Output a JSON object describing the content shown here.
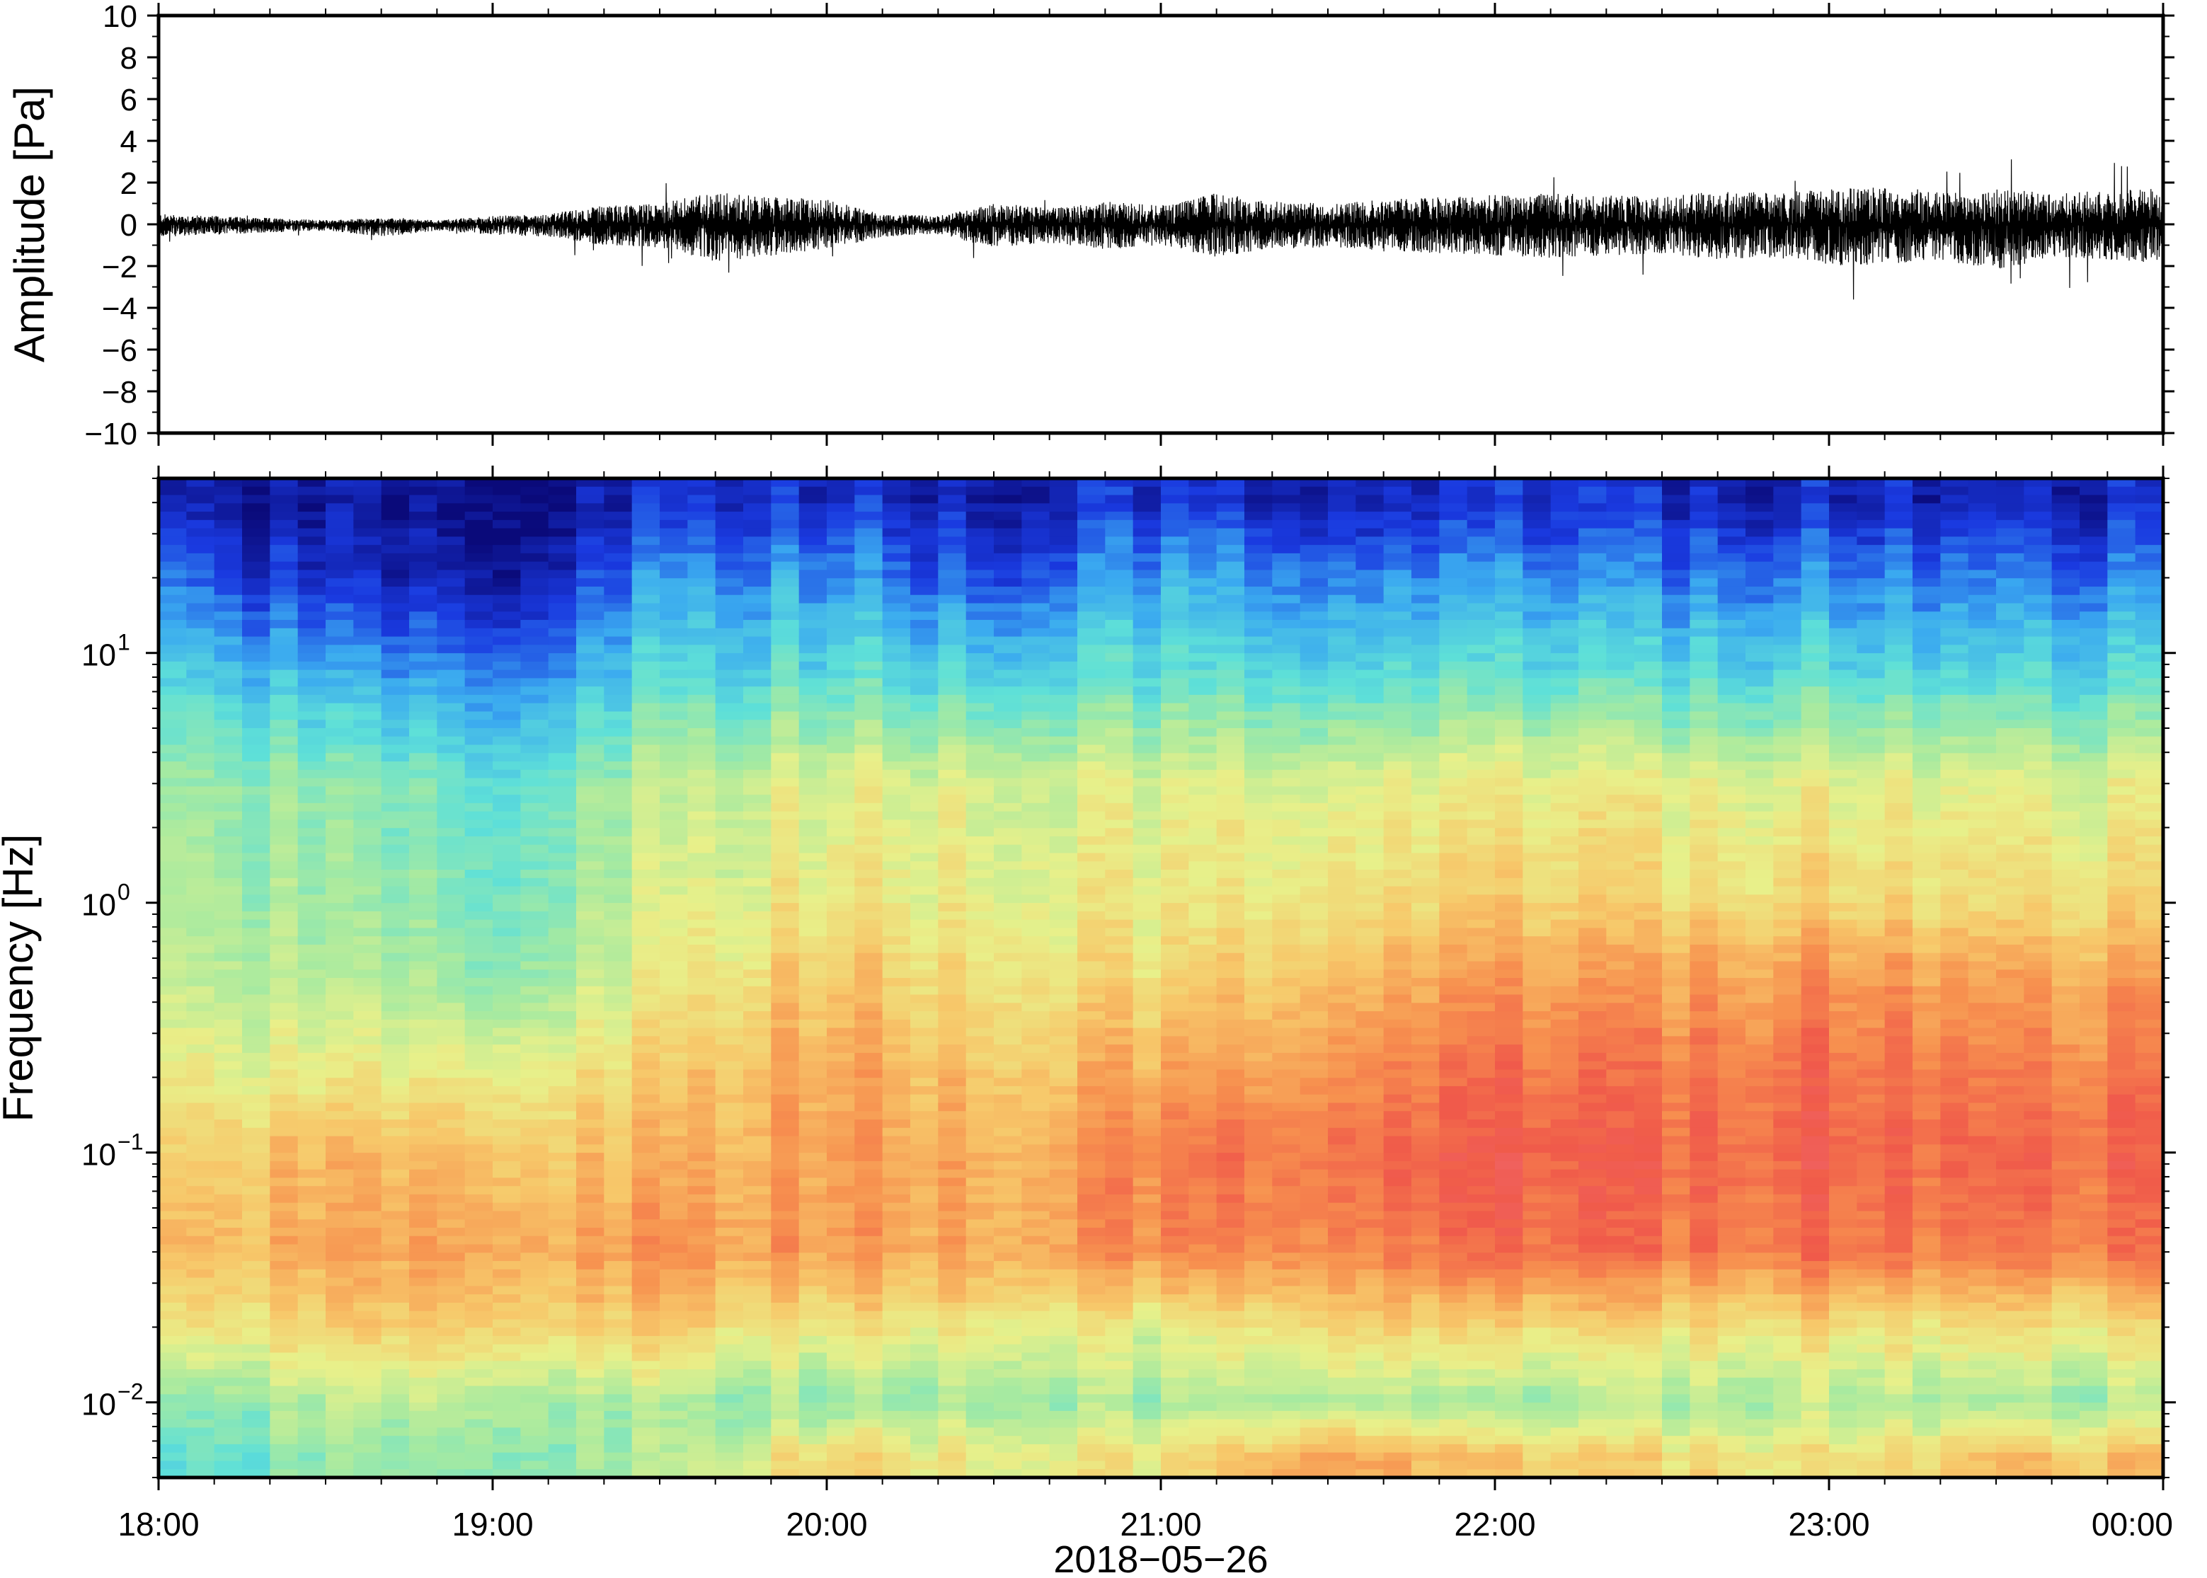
{
  "chart_data": [
    {
      "type": "line",
      "title": "",
      "ylabel": "Amplitude [Pa]",
      "ylim": [
        -10,
        10
      ],
      "yticks": [
        10,
        8,
        6,
        4,
        2,
        0,
        -2,
        -4,
        -6,
        -8,
        -10
      ],
      "ytick_labels": [
        "10",
        "8",
        "6",
        "4",
        "2",
        "0",
        "−2",
        "−4",
        "−6",
        "−8",
        "−10"
      ],
      "xlim": [
        "2018-05-26 18:00",
        "2018-05-27 00:00"
      ],
      "line_color": "#000000",
      "envelope": {
        "description_units": "Pa",
        "time": [
          "18:00",
          "18:10",
          "18:20",
          "18:30",
          "18:40",
          "18:50",
          "19:00",
          "19:10",
          "19:20",
          "19:30",
          "19:40",
          "19:50",
          "20:00",
          "20:10",
          "20:20",
          "20:30",
          "20:40",
          "20:50",
          "21:00",
          "21:10",
          "21:20",
          "21:30",
          "21:40",
          "21:50",
          "22:00",
          "22:10",
          "22:20",
          "22:30",
          "22:40",
          "22:50",
          "23:00",
          "23:10",
          "23:20",
          "23:30",
          "23:40",
          "23:50",
          "00:00"
        ],
        "upper": [
          0.5,
          0.4,
          0.3,
          0.2,
          0.3,
          0.2,
          0.4,
          0.5,
          0.9,
          1.0,
          1.6,
          1.3,
          1.2,
          0.5,
          0.4,
          1.0,
          0.8,
          1.1,
          0.9,
          1.5,
          1.1,
          1.0,
          1.2,
          1.3,
          1.4,
          1.5,
          1.4,
          1.3,
          1.6,
          1.5,
          1.7,
          1.8,
          1.6,
          1.7,
          1.5,
          1.6,
          1.8
        ],
        "lower": [
          -0.6,
          -0.5,
          -0.4,
          -0.3,
          -0.6,
          -0.3,
          -0.5,
          -0.6,
          -1.0,
          -1.1,
          -1.8,
          -1.5,
          -1.2,
          -0.6,
          -0.5,
          -1.1,
          -0.9,
          -1.2,
          -1.0,
          -1.6,
          -1.2,
          -1.1,
          -1.3,
          -1.4,
          -1.5,
          -1.6,
          -1.5,
          -1.4,
          -1.7,
          -1.6,
          -2.0,
          -1.9,
          -1.7,
          -2.2,
          -1.6,
          -1.7,
          -1.9
        ]
      }
    },
    {
      "type": "heatmap",
      "title": "",
      "xlabel": "2018−05−26",
      "ylabel": "Frequency [Hz]",
      "yscale": "log",
      "ylim": [
        0.005,
        50
      ],
      "yticks": [
        0.01,
        0.1,
        1,
        10
      ],
      "ytick_labels": [
        {
          "base": "10",
          "exp": "−2"
        },
        {
          "base": "10",
          "exp": "−1"
        },
        {
          "base": "10",
          "exp": "0"
        },
        {
          "base": "10",
          "exp": "1"
        }
      ],
      "xticks": [
        "18:00",
        "19:00",
        "20:00",
        "21:00",
        "22:00",
        "23:00",
        "00:00"
      ],
      "xlim": [
        "2018-05-26 18:00",
        "2018-05-27 00:00"
      ],
      "colormap": [
        "#0a0a7a",
        "#1a3ae0",
        "#3aa9f0",
        "#5ee0d8",
        "#a7eaa0",
        "#e8f08a",
        "#f7c86a",
        "#f7914f",
        "#f05a4a",
        "#f06a78"
      ],
      "freq_bins_hz": [
        0.006,
        0.01,
        0.02,
        0.04,
        0.1,
        0.2,
        0.5,
        1,
        3,
        8,
        20,
        40
      ],
      "time_bins": [
        "18:00",
        "18:30",
        "19:00",
        "19:30",
        "20:00",
        "20:30",
        "21:00",
        "21:30",
        "22:00",
        "22:30",
        "23:00",
        "23:30"
      ],
      "relative_power": [
        [
          0.35,
          0.4,
          0.42,
          0.45,
          0.65,
          0.55,
          0.6,
          0.78,
          0.65,
          0.62,
          0.6,
          0.68
        ],
        [
          0.42,
          0.45,
          0.48,
          0.45,
          0.42,
          0.44,
          0.45,
          0.5,
          0.42,
          0.45,
          0.48,
          0.45
        ],
        [
          0.6,
          0.62,
          0.66,
          0.64,
          0.6,
          0.58,
          0.55,
          0.66,
          0.62,
          0.6,
          0.62,
          0.6
        ],
        [
          0.72,
          0.7,
          0.74,
          0.76,
          0.76,
          0.72,
          0.8,
          0.82,
          0.84,
          0.82,
          0.84,
          0.82
        ],
        [
          0.66,
          0.68,
          0.68,
          0.7,
          0.76,
          0.7,
          0.82,
          0.86,
          0.88,
          0.86,
          0.88,
          0.86
        ],
        [
          0.6,
          0.55,
          0.58,
          0.65,
          0.75,
          0.66,
          0.74,
          0.8,
          0.84,
          0.82,
          0.86,
          0.82
        ],
        [
          0.52,
          0.45,
          0.42,
          0.55,
          0.68,
          0.6,
          0.62,
          0.72,
          0.74,
          0.74,
          0.78,
          0.74
        ],
        [
          0.5,
          0.42,
          0.38,
          0.52,
          0.6,
          0.55,
          0.58,
          0.62,
          0.64,
          0.62,
          0.64,
          0.62
        ],
        [
          0.46,
          0.4,
          0.35,
          0.48,
          0.55,
          0.52,
          0.54,
          0.56,
          0.56,
          0.55,
          0.56,
          0.54
        ],
        [
          0.34,
          0.22,
          0.18,
          0.32,
          0.34,
          0.3,
          0.35,
          0.34,
          0.34,
          0.32,
          0.34,
          0.32
        ],
        [
          0.2,
          0.06,
          0.04,
          0.2,
          0.22,
          0.12,
          0.24,
          0.2,
          0.2,
          0.18,
          0.2,
          0.18
        ],
        [
          0.08,
          0.02,
          0.01,
          0.08,
          0.1,
          0.04,
          0.1,
          0.08,
          0.08,
          0.07,
          0.08,
          0.07
        ]
      ]
    }
  ]
}
